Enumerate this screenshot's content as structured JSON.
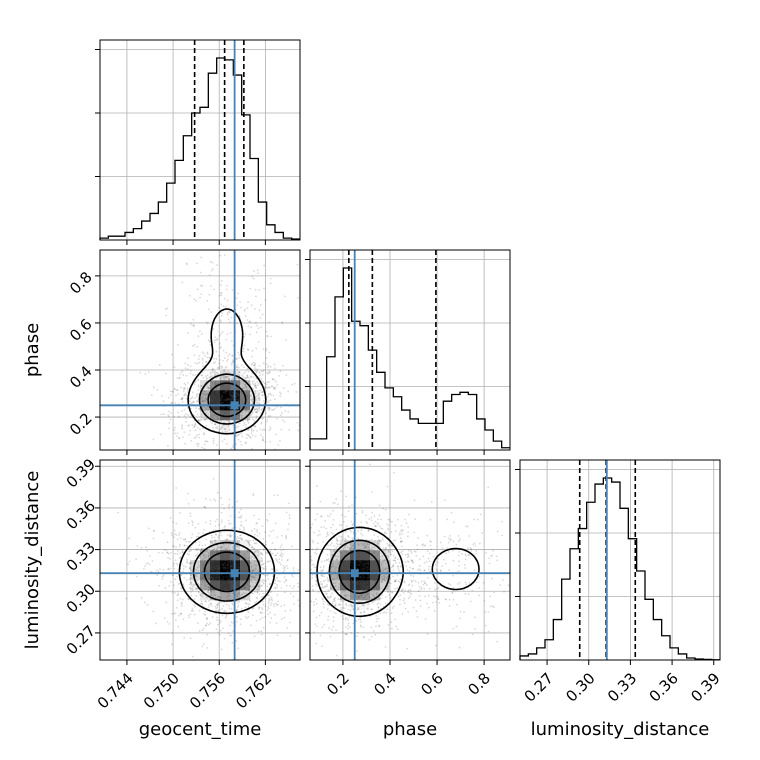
{
  "chart_data": {
    "type": "corner",
    "parameters": [
      "geocent_time",
      "phase",
      "luminosity_distance"
    ],
    "truth": {
      "geocent_time": 0.758,
      "phase": 0.25,
      "luminosity_distance": 0.313
    },
    "colors": {
      "truth": "#4682b4",
      "hist": "#000000",
      "quantile": "#000000",
      "grid": "#b0b0b0"
    },
    "axes": {
      "geocent_time": {
        "range": [
          0.7405,
          0.7665
        ],
        "ticks": [
          0.744,
          0.75,
          0.756,
          0.762
        ],
        "tick_labels": [
          "0.744",
          "0.750",
          "0.756",
          "0.762"
        ]
      },
      "phase": {
        "range": [
          0.06,
          0.91
        ],
        "ticks": [
          0.2,
          0.4,
          0.6,
          0.8
        ],
        "tick_labels": [
          "0.2",
          "0.4",
          "0.6",
          "0.8"
        ]
      },
      "luminosity_distance": {
        "range": [
          0.2505,
          0.3945
        ],
        "ticks": [
          0.27,
          0.3,
          0.33,
          0.36,
          0.39
        ],
        "tick_labels": [
          "0.27",
          "0.30",
          "0.33",
          "0.36",
          "0.39"
        ]
      }
    },
    "histograms": {
      "geocent_time": {
        "edges_range": [
          0.7405,
          0.7665
        ],
        "counts": [
          1,
          2,
          2,
          4,
          6,
          10,
          14,
          20,
          30,
          42,
          55,
          67,
          70,
          88,
          96,
          95,
          87,
          66,
          43,
          20,
          8,
          4,
          1,
          0.5
        ],
        "quantiles": [
          0.7528,
          0.7567,
          0.7592
        ]
      },
      "phase": {
        "edges_range": [
          0.06,
          0.91
        ],
        "counts": [
          5,
          5,
          42,
          69,
          82,
          58,
          56,
          45,
          35,
          28,
          24,
          18,
          14,
          12,
          12,
          12,
          22,
          25,
          26,
          25,
          14,
          9,
          4,
          1
        ],
        "quantiles": [
          0.225,
          0.325,
          0.595
        ]
      },
      "luminosity_distance": {
        "edges_range": [
          0.2505,
          0.3945
        ],
        "counts": [
          2,
          3,
          6,
          10,
          20,
          40,
          55,
          65,
          78,
          87,
          90,
          88,
          75,
          60,
          44,
          30,
          20,
          12,
          6,
          3,
          1,
          0.5,
          0.3,
          0.1
        ],
        "quantiles": [
          0.2935,
          0.3125,
          0.3335
        ]
      }
    },
    "density_2d": [
      {
        "x": "geocent_time",
        "y": "phase",
        "components": [
          {
            "cx": 0.757,
            "cy": 0.27,
            "sx": 0.0025,
            "sy": 0.07,
            "w": 1.0
          },
          {
            "cx": 0.757,
            "cy": 0.55,
            "sx": 0.0028,
            "sy": 0.15,
            "w": 0.18
          }
        ]
      },
      {
        "x": "geocent_time",
        "y": "luminosity_distance",
        "components": [
          {
            "cx": 0.757,
            "cy": 0.314,
            "sx": 0.0031,
            "sy": 0.015,
            "w": 1.0
          }
        ]
      },
      {
        "x": "phase",
        "y": "luminosity_distance",
        "components": [
          {
            "cx": 0.27,
            "cy": 0.314,
            "sx": 0.09,
            "sy": 0.016,
            "w": 1.0
          },
          {
            "cx": 0.68,
            "cy": 0.316,
            "sx": 0.1,
            "sy": 0.015,
            "w": 0.22
          }
        ]
      }
    ]
  }
}
